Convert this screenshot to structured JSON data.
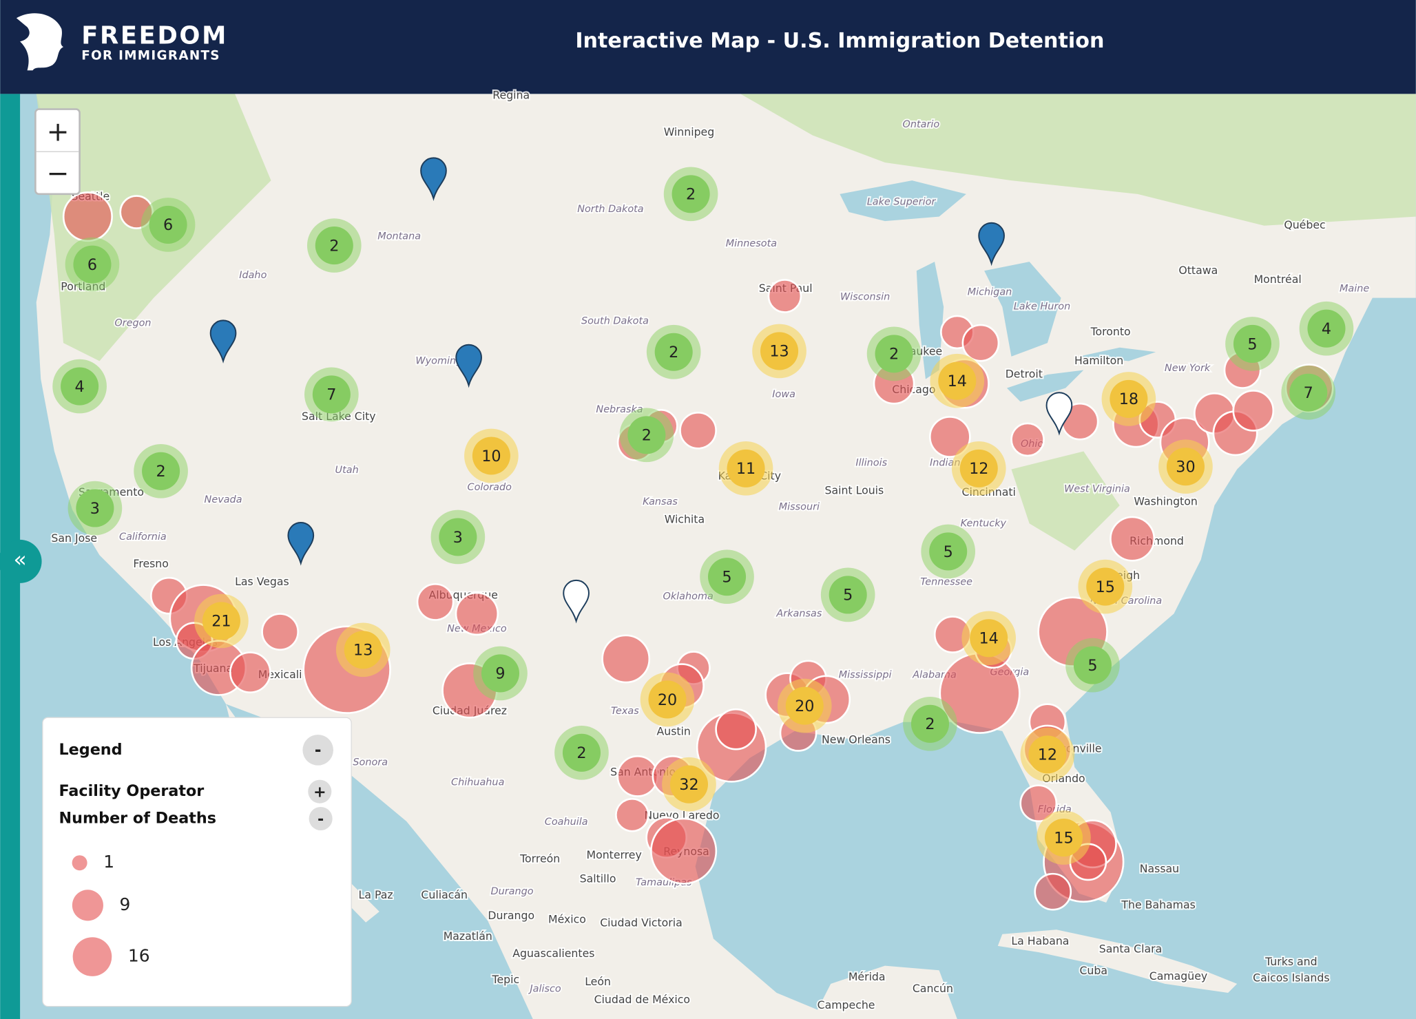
{
  "header": {
    "logo_line1": "FREEDOM",
    "logo_line2": "FOR IMMIGRANTS",
    "title": "Interactive Map - U.S. Immigration Detention"
  },
  "zoom": {
    "in": "+",
    "out": "−"
  },
  "sidebar_toggle": "«",
  "legend": {
    "title": "Legend",
    "collapse": "-",
    "sections": [
      {
        "label": "Facility Operator",
        "toggle": "+"
      },
      {
        "label": "Number of Deaths",
        "toggle": "-"
      }
    ],
    "sizes": [
      1,
      9,
      16
    ]
  },
  "clusters": [
    {
      "count": 6,
      "level": "green"
    },
    {
      "count": 6,
      "level": "green"
    },
    {
      "count": 4,
      "level": "green"
    },
    {
      "count": 2,
      "level": "green"
    },
    {
      "count": 7,
      "level": "green"
    },
    {
      "count": 2,
      "level": "green"
    },
    {
      "count": 3,
      "level": "green"
    },
    {
      "count": 2,
      "level": "green"
    },
    {
      "count": 2,
      "level": "green"
    },
    {
      "count": 13,
      "level": "yellow"
    },
    {
      "count": 2,
      "level": "green"
    },
    {
      "count": 11,
      "level": "yellow"
    },
    {
      "count": 10,
      "level": "yellow"
    },
    {
      "count": 3,
      "level": "green"
    },
    {
      "count": 5,
      "level": "green"
    },
    {
      "count": 5,
      "level": "green"
    },
    {
      "count": 21,
      "level": "yellow"
    },
    {
      "count": 13,
      "level": "yellow"
    },
    {
      "count": 9,
      "level": "green"
    },
    {
      "count": 20,
      "level": "yellow"
    },
    {
      "count": 2,
      "level": "green"
    },
    {
      "count": 32,
      "level": "yellow"
    },
    {
      "count": 20,
      "level": "yellow"
    },
    {
      "count": 2,
      "level": "green"
    },
    {
      "count": 14,
      "level": "yellow"
    },
    {
      "count": 12,
      "level": "yellow"
    },
    {
      "count": 5,
      "level": "green"
    },
    {
      "count": 18,
      "level": "yellow"
    },
    {
      "count": 30,
      "level": "yellow"
    },
    {
      "count": 5,
      "level": "green"
    },
    {
      "count": 4,
      "level": "green"
    },
    {
      "count": 7,
      "level": "green"
    },
    {
      "count": 15,
      "level": "yellow"
    },
    {
      "count": 14,
      "level": "yellow"
    },
    {
      "count": 5,
      "level": "green"
    },
    {
      "count": 2,
      "level": "green"
    },
    {
      "count": 12,
      "level": "yellow"
    },
    {
      "count": 15,
      "level": "yellow"
    }
  ],
  "death_markers": [
    27,
    10,
    13,
    56,
    13,
    35,
    17,
    13,
    100,
    13,
    19,
    35,
    25,
    10,
    21,
    60,
    17,
    17,
    17,
    10,
    17,
    53,
    21,
    13,
    25,
    13,
    10,
    17,
    10,
    13,
    27,
    17,
    13,
    10,
    13,
    10,
    13,
    23,
    13,
    27,
    17,
    21,
    17,
    13,
    25,
    21,
    60,
    13,
    83,
    13,
    13,
    25,
    13,
    83,
    25,
    13,
    13
  ],
  "map_labels": [
    "Regina",
    "Winnipeg",
    "Ontario",
    "Seattle",
    "Portland",
    "Montana",
    "North Dakota",
    "Minnesota",
    "Lake Superior",
    "Québec",
    "Ottawa",
    "Montréal",
    "Maine",
    "Idaho",
    "Oregon",
    "South Dakota",
    "Wisconsin",
    "Michigan",
    "Lake Huron",
    "Toronto",
    "Hamilton",
    "New York",
    "Wyoming",
    "Saint Paul",
    "Milwaukee",
    "Iowa",
    "Detroit",
    "Chicago",
    "Nebraska",
    "Salt Lake City",
    "Utah",
    "Nevada",
    "Colorado",
    "Illinois",
    "Indiana",
    "Ohio",
    "Kansas City",
    "Saint Louis",
    "Cincinnati",
    "West Virginia",
    "Washington",
    "Sacramento",
    "San Jose",
    "California",
    "Kansas",
    "Wichita",
    "Missouri",
    "Kentucky",
    "Richmond",
    "Fresno",
    "Las Vegas",
    "Oklahoma",
    "Arkansas",
    "Tennessee",
    "Raleigh",
    "North Carolina",
    "Albuquerque",
    "New Mexico",
    "Los Angeles",
    "Tijuana",
    "Mexicali",
    "Mississippi",
    "Alabama",
    "Georgia",
    "Texas",
    "Ciudad Juárez",
    "Austin",
    "New Orleans",
    "Sonora",
    "Chihuahua",
    "San Antonio",
    "Jacksonville",
    "Orlando",
    "Coahuila",
    "Nuevo Laredo",
    "Torreón",
    "Monterrey",
    "Saltillo",
    "Reynosa",
    "Tamaulipas",
    "Florida",
    "Nassau",
    "The Bahamas",
    "La Paz",
    "Culiacán",
    "Durango",
    "Durango",
    "México",
    "Ciudad Victoria",
    "Mazatlán",
    "Aguascalientes",
    "Tepic",
    "León",
    "Jalisco",
    "Ciudad de México",
    "Mérida",
    "Cancún",
    "Campeche",
    "La Habana",
    "Santa Clara",
    "Cuba",
    "Camagüey",
    "Turks and",
    "Caicos Islands"
  ]
}
